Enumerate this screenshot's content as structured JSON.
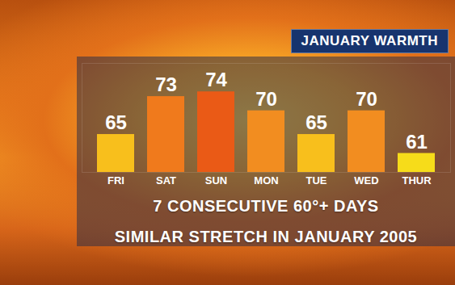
{
  "chart_data": {
    "type": "bar",
    "title": "JANUARY WARMTH",
    "categories": [
      "FRI",
      "SAT",
      "SUN",
      "MON",
      "TUE",
      "WED",
      "THUR"
    ],
    "values": [
      65,
      73,
      74,
      70,
      65,
      70,
      61
    ],
    "colors": [
      "#f8bf1c",
      "#f07a1c",
      "#ea5a16",
      "#f28d20",
      "#f8bf1c",
      "#f28d20",
      "#f6dc1a"
    ],
    "ylim": [
      57,
      80
    ],
    "data_labels": true,
    "tick_labels": "x",
    "annotations": [
      "7 CONSECUTIVE 60°+ DAYS",
      "SIMILAR STRETCH IN JANUARY 2005"
    ]
  }
}
